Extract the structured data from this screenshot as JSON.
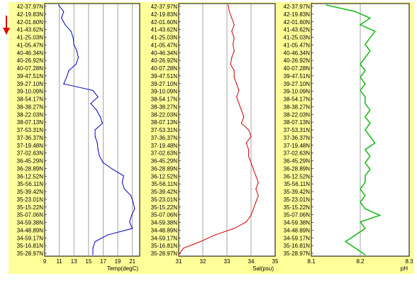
{
  "chart_data": [
    {
      "type": "line",
      "orientation": "vertical-profile",
      "y_tick_labels": [
        "42-37.97N",
        "42-19.83N",
        "42-01.60N",
        "41-43.62N",
        "41-25.03N",
        "41-05.47N",
        "40-46.34N",
        "40-26.92N",
        "40-07.28N",
        "39-47.51N",
        "39-27.10N",
        "39-10.09N",
        "38-54.17N",
        "38-38.27N",
        "38-22.03N",
        "38-07.13N",
        "37-53.31N",
        "37-36.37N",
        "37-19.48N",
        "37-02.63N",
        "36-45.29N",
        "36-28.89N",
        "36-12.52N",
        "35-56.11N",
        "35-39.42N",
        "35-23.01N",
        "35-15.22N",
        "35-07.06N",
        "34-59.38N",
        "34-48.89N",
        "34-59.17N",
        "35-16.81N",
        "35-28.97N"
      ],
      "xlabel": "Temp(degC)",
      "x_ticks": [
        9,
        11,
        13,
        15,
        17,
        19,
        21
      ],
      "xlim": [
        9,
        22
      ],
      "grid": "vertical",
      "series": [
        {
          "color": "#0000c0",
          "values": [
            10.9,
            11.6,
            11.3,
            11.8,
            12.6,
            12.9,
            13.0,
            13.4,
            13.6,
            13.3,
            12.3,
            12.0,
            11.6,
            15.6,
            16.3,
            15.3,
            16.1,
            16.6,
            16.9,
            15.9,
            15.9,
            16.2,
            16.3,
            16.5,
            17.0,
            18.3,
            19.8,
            19.6,
            19.9,
            20.8,
            21.1,
            21.3,
            20.9,
            20.6,
            21.0,
            17.6,
            15.9,
            15.6,
            15.6
          ]
        }
      ]
    },
    {
      "type": "line",
      "orientation": "vertical-profile",
      "xlabel": "Sal(psu)",
      "x_ticks": [
        31,
        32,
        33,
        34,
        35
      ],
      "xlim": [
        31,
        35
      ],
      "grid": "vertical",
      "series": [
        {
          "color": "#d00000",
          "values": [
            33.05,
            33.1,
            33.2,
            33.3,
            33.2,
            33.3,
            33.25,
            33.3,
            33.2,
            33.15,
            33.3,
            33.3,
            33.4,
            33.5,
            33.4,
            33.5,
            33.6,
            33.7,
            33.6,
            33.9,
            34.0,
            33.8,
            33.9,
            33.9,
            34.0,
            34.1,
            34.2,
            34.3,
            34.2,
            34.3,
            34.2,
            34.1,
            34.0,
            33.8,
            33.3,
            32.5,
            31.9,
            31.2,
            31.0
          ]
        }
      ]
    },
    {
      "type": "line",
      "orientation": "vertical-profile",
      "xlabel": "pH",
      "x_ticks": [
        8.1,
        8.2,
        8.3
      ],
      "xlim": [
        8.1,
        8.3
      ],
      "grid": "vertical",
      "series": [
        {
          "color": "#22bb22",
          "values": [
            8.13,
            8.19,
            8.22,
            8.2,
            8.23,
            8.22,
            8.21,
            8.22,
            8.21,
            8.2,
            8.21,
            8.2,
            8.21,
            8.2,
            8.21,
            8.21,
            8.22,
            8.21,
            8.22,
            8.21,
            8.22,
            8.23,
            8.21,
            8.22,
            8.21,
            8.22,
            8.21,
            8.21,
            8.2,
            8.21,
            8.2,
            8.21,
            8.24,
            8.2,
            8.21,
            8.19,
            8.17,
            8.19,
            8.21
          ]
        }
      ]
    }
  ],
  "colors": {
    "panel_background": "#ffff99",
    "plot_background": "#ffffff",
    "gridline": "#808080",
    "arrow": "#e00000"
  }
}
